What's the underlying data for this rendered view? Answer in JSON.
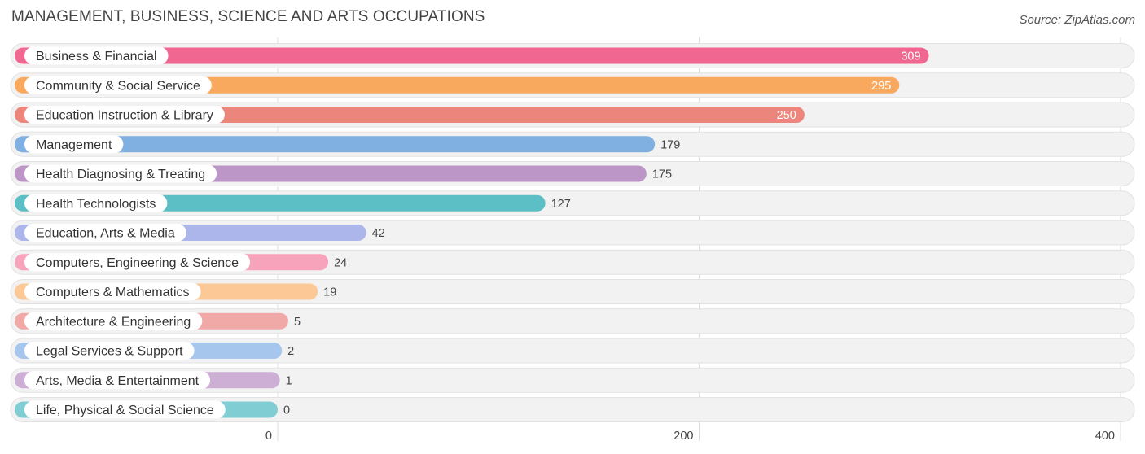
{
  "header": {
    "title": "MANAGEMENT, BUSINESS, SCIENCE AND ARTS OCCUPATIONS",
    "source": "Source: ZipAtlas.com"
  },
  "chart_data": {
    "type": "bar",
    "orientation": "horizontal",
    "title": "MANAGEMENT, BUSINESS, SCIENCE AND ARTS OCCUPATIONS",
    "xlabel": "",
    "ylabel": "",
    "xlim": [
      0,
      400
    ],
    "ticks": [
      0,
      200,
      400
    ],
    "tick_labels": [
      "0",
      "200",
      "400"
    ],
    "grid": true,
    "categories": [
      "Business & Financial",
      "Community & Social Service",
      "Education Instruction & Library",
      "Management",
      "Health Diagnosing & Treating",
      "Health Technologists",
      "Education, Arts & Media",
      "Computers, Engineering & Science",
      "Computers & Mathematics",
      "Architecture & Engineering",
      "Legal Services & Support",
      "Arts, Media & Entertainment",
      "Life, Physical & Social Science"
    ],
    "values": [
      309,
      295,
      250,
      179,
      175,
      127,
      42,
      24,
      19,
      5,
      2,
      1,
      0
    ],
    "value_labels": [
      "309",
      "295",
      "250",
      "179",
      "175",
      "127",
      "42",
      "24",
      "19",
      "5",
      "2",
      "1",
      "0"
    ],
    "colors": [
      "#f06792",
      "#f9a95d",
      "#ec857b",
      "#7fb0e1",
      "#bb96c6",
      "#5bbfc5",
      "#adb6ea",
      "#f7a3bb",
      "#fbc896",
      "#f1a9a8",
      "#a7c6ee",
      "#cdafd6",
      "#80cdd3"
    ]
  }
}
